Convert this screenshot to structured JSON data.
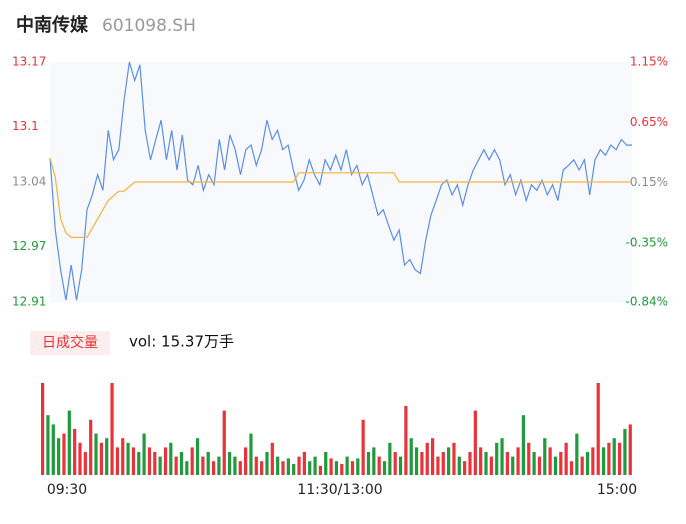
{
  "chart_data": [
    {
      "type": "line",
      "title": "中南传媒",
      "subtitle": "601098.SH",
      "series": [
        {
          "color": "#5b8ee6",
          "values": [
            13.066,
            12.988,
            12.945,
            12.912,
            12.95,
            12.912,
            12.945,
            13.01,
            13.026,
            13.048,
            13.031,
            13.096,
            13.064,
            13.075,
            13.129,
            13.17,
            13.15,
            13.167,
            13.096,
            13.064,
            13.086,
            13.107,
            13.064,
            13.096,
            13.053,
            13.091,
            13.042,
            13.037,
            13.058,
            13.031,
            13.048,
            13.037,
            13.086,
            13.053,
            13.091,
            13.075,
            13.048,
            13.075,
            13.08,
            13.058,
            13.075,
            13.107,
            13.086,
            13.096,
            13.075,
            13.08,
            13.053,
            13.031,
            13.042,
            13.064,
            13.048,
            13.037,
            13.064,
            13.053,
            13.069,
            13.053,
            13.075,
            13.048,
            13.058,
            13.037,
            13.048,
            13.026,
            13.004,
            13.01,
            12.993,
            12.977,
            12.988,
            12.95,
            12.956,
            12.945,
            12.941,
            12.977,
            13.004,
            13.02,
            13.037,
            13.042,
            13.026,
            13.037,
            13.015,
            13.037,
            13.053,
            13.064,
            13.075,
            13.064,
            13.075,
            13.064,
            13.037,
            13.048,
            13.026,
            13.042,
            13.02,
            13.037,
            13.031,
            13.042,
            13.026,
            13.037,
            13.02,
            13.053,
            13.058,
            13.064,
            13.053,
            13.064,
            13.026,
            13.064,
            13.075,
            13.069,
            13.08,
            13.075,
            13.086,
            13.08,
            13.08
          ]
        },
        {
          "color": "#f0b43c",
          "values": [
            13.066,
            13.045,
            13.0,
            12.985,
            12.98,
            12.98,
            12.98,
            12.98,
            12.99,
            13.0,
            13.01,
            13.02,
            13.025,
            13.03,
            13.03,
            13.035,
            13.04,
            13.04,
            13.04,
            13.04,
            13.04,
            13.04,
            13.04,
            13.04,
            13.04,
            13.04,
            13.04,
            13.04,
            13.04,
            13.04,
            13.04,
            13.04,
            13.04,
            13.04,
            13.04,
            13.04,
            13.04,
            13.04,
            13.04,
            13.04,
            13.04,
            13.04,
            13.04,
            13.04,
            13.04,
            13.04,
            13.04,
            13.05,
            13.05,
            13.05,
            13.05,
            13.05,
            13.05,
            13.05,
            13.05,
            13.05,
            13.05,
            13.05,
            13.05,
            13.05,
            13.05,
            13.05,
            13.05,
            13.05,
            13.05,
            13.05,
            13.04,
            13.04,
            13.04,
            13.04,
            13.04,
            13.04,
            13.04,
            13.04,
            13.04,
            13.04,
            13.04,
            13.04,
            13.04,
            13.04,
            13.04,
            13.04,
            13.04,
            13.04,
            13.04,
            13.04,
            13.04,
            13.04,
            13.04,
            13.04,
            13.04,
            13.04,
            13.04,
            13.04,
            13.04,
            13.04,
            13.04,
            13.04,
            13.04,
            13.04,
            13.04,
            13.04,
            13.04,
            13.04,
            13.04,
            13.04,
            13.04,
            13.04,
            13.04,
            13.04,
            13.04
          ]
        }
      ],
      "ylim": [
        12.91,
        13.17
      ],
      "yticks": [
        13.17,
        13.1,
        13.04,
        12.97,
        12.91
      ],
      "y2lim": [
        -0.84,
        1.15
      ],
      "y2ticks": [
        {
          "value": 1.15,
          "label": "1.15%"
        },
        {
          "value": 0.65,
          "label": "0.65%"
        },
        {
          "value": 0.15,
          "label": "0.15%"
        },
        {
          "value": -0.35,
          "label": "-0.35%"
        },
        {
          "value": -0.84,
          "label": "-0.84%"
        }
      ],
      "up_color": "#e8333a",
      "flat_color": "#8c8c8c",
      "down_color": "#1f9a3c"
    },
    {
      "type": "bar",
      "legend": "日成交量",
      "annotation": "vol: 15.37万手",
      "x_labels": [
        "09:30",
        "11:30/13:00",
        "15:00"
      ],
      "values": [
        100,
        65,
        55,
        40,
        45,
        70,
        50,
        35,
        25,
        60,
        45,
        35,
        40,
        100,
        30,
        40,
        35,
        30,
        25,
        45,
        30,
        25,
        20,
        30,
        35,
        20,
        25,
        15,
        30,
        40,
        20,
        25,
        15,
        20,
        70,
        25,
        20,
        15,
        30,
        45,
        20,
        15,
        25,
        35,
        20,
        15,
        18,
        12,
        20,
        25,
        15,
        20,
        10,
        25,
        18,
        15,
        12,
        20,
        15,
        18,
        60,
        25,
        30,
        20,
        15,
        35,
        25,
        20,
        75,
        40,
        30,
        25,
        35,
        40,
        20,
        25,
        30,
        35,
        20,
        15,
        25,
        70,
        30,
        25,
        20,
        35,
        40,
        25,
        20,
        30,
        65,
        35,
        25,
        20,
        40,
        30,
        20,
        25,
        35,
        15,
        45,
        20,
        25,
        30,
        100,
        30,
        35,
        40,
        35,
        50,
        55
      ],
      "ylim": [
        0,
        100
      ],
      "up_color": "#e8333a",
      "down_color": "#1f9a3c"
    }
  ]
}
